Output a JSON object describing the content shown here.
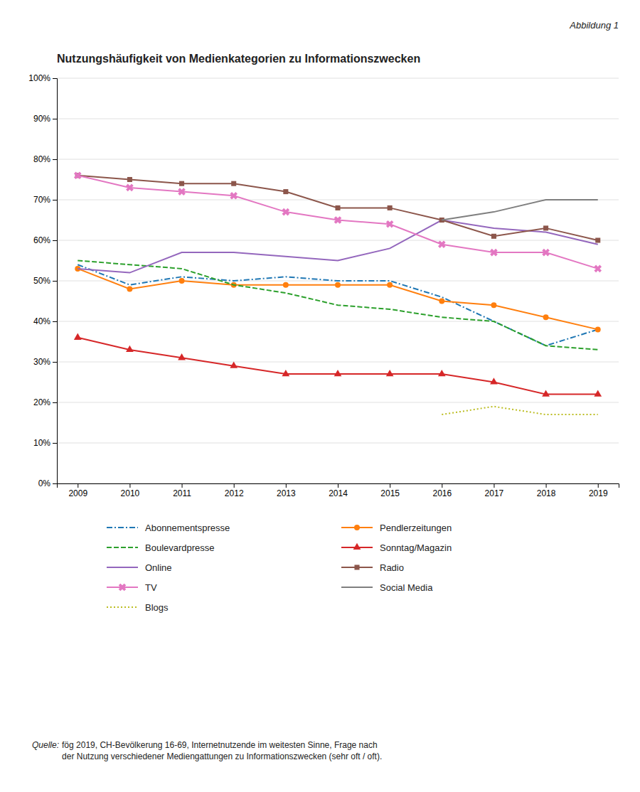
{
  "chart_data": {
    "type": "line",
    "title": "Nutzungshäufigkeit von Medienkategorien zu Informationszwecken",
    "annotations": [
      "Abbildung 1",
      "Quelle:",
      " fög 2019, CH-Bevölkerung 16-69, Internetnutzende im weitesten Sinne, Frage nach\nder Nutzung verschiedener Mediengattungen zu Informationszwecken (sehr oft / oft)."
    ],
    "x": [
      2009,
      2010,
      2011,
      2012,
      2013,
      2014,
      2015,
      2016,
      2017,
      2018,
      2019
    ],
    "series": [
      {
        "name": "Abonnementspresse",
        "values": [
          54,
          49,
          51,
          50,
          51,
          50,
          50,
          46,
          40,
          34,
          38
        ],
        "line_style": "dashdot"
      },
      {
        "name": "Pendlerzeitungen",
        "values": [
          53,
          48,
          50,
          49,
          49,
          49,
          49,
          45,
          44,
          41,
          38
        ],
        "line_style": "solid",
        "marker": "circle"
      },
      {
        "name": "Boulevardpresse",
        "values": [
          55,
          54,
          53,
          49,
          47,
          44,
          43,
          41,
          40,
          34,
          33
        ],
        "line_style": "dashed"
      },
      {
        "name": "Sonntag/Magazin",
        "values": [
          36,
          33,
          31,
          29,
          27,
          27,
          27,
          27,
          25,
          22,
          22
        ],
        "line_style": "solid",
        "marker": "triangle"
      },
      {
        "name": "Online",
        "values": [
          53,
          52,
          57,
          57,
          56,
          55,
          58,
          65,
          63,
          62,
          59
        ],
        "line_style": "solid"
      },
      {
        "name": "Radio",
        "values": [
          76,
          75,
          74,
          74,
          72,
          68,
          68,
          65,
          61,
          63,
          60
        ],
        "line_style": "solid",
        "marker": "square"
      },
      {
        "name": "TV",
        "values": [
          76,
          73,
          72,
          71,
          67,
          65,
          64,
          59,
          57,
          57,
          53
        ],
        "line_style": "solid",
        "marker": "x"
      },
      {
        "name": "Social Media",
        "values": [
          null,
          null,
          null,
          null,
          null,
          null,
          null,
          65,
          67,
          70,
          70
        ],
        "line_style": "solid"
      },
      {
        "name": "Blogs",
        "values": [
          null,
          null,
          null,
          null,
          null,
          null,
          null,
          17,
          19,
          17,
          17
        ],
        "line_style": "dotted"
      }
    ],
    "xlim": [
      2008.6,
      2019.4
    ],
    "xticks": [
      2009,
      2010,
      2011,
      2012,
      2013,
      2014,
      2015,
      2016,
      2017,
      2018,
      2019
    ],
    "ylim": [
      0,
      100
    ],
    "yticks": [
      {
        "value": 0,
        "label": "0%"
      },
      {
        "value": 10,
        "label": "10%"
      },
      {
        "value": 20,
        "label": "20%"
      },
      {
        "value": 30,
        "label": "30%"
      },
      {
        "value": 40,
        "label": "40%"
      },
      {
        "value": 50,
        "label": "50%"
      },
      {
        "value": 60,
        "label": "60%"
      },
      {
        "value": 70,
        "label": "70%"
      },
      {
        "value": 80,
        "label": "80%"
      },
      {
        "value": 90,
        "label": "90%"
      },
      {
        "value": 100,
        "label": "100%"
      }
    ],
    "grid": "y",
    "legend": "bottom"
  }
}
